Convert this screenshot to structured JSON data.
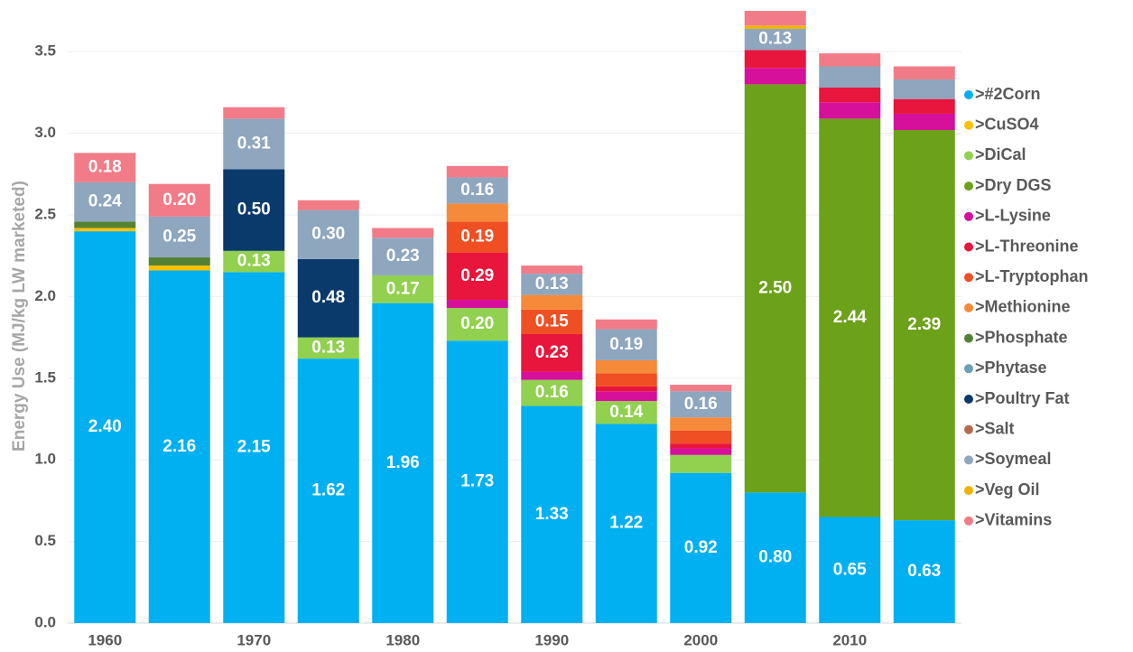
{
  "chart_data": {
    "type": "stacked_bar",
    "y_label": "Energy Use (MJ/kg LW marketed)",
    "categories": [
      "1960",
      null,
      "1970",
      null,
      "1980",
      null,
      "1990",
      null,
      "2000",
      null,
      "2010",
      null
    ],
    "ylim": [
      0,
      3.8
    ],
    "yticks": [
      {
        "value": 0,
        "label": "0.0"
      },
      0.5,
      {
        "value": 1,
        "label": "1.0"
      },
      1.5,
      {
        "value": 2,
        "label": "2.0"
      },
      2.5,
      {
        "value": 3,
        "label": "3.0"
      },
      3.5
    ],
    "grid": true,
    "legend": "right",
    "series": [
      {
        "name": ">#2Corn",
        "color": "#00b0f0",
        "values": [
          2.4,
          2.16,
          2.15,
          1.62,
          1.96,
          1.73,
          1.33,
          1.22,
          0.92,
          0.8,
          0.65,
          0.63
        ],
        "value_labels": [
          "2.40",
          "2.16",
          "2.15",
          "1.62",
          "1.96",
          "1.73",
          "1.33",
          "1.22",
          "0.92",
          "0.80",
          "0.65",
          "0.63"
        ]
      },
      {
        "name": ">CuSO4",
        "color": "#ffc000",
        "values": [
          0.02,
          0.03,
          null,
          null,
          null,
          null,
          null,
          null,
          null,
          null,
          null,
          null
        ]
      },
      {
        "name": ">DiCal",
        "color": "#92d050",
        "values": [
          null,
          null,
          0.13,
          0.13,
          0.17,
          0.2,
          0.16,
          0.14,
          0.11,
          null,
          null,
          null
        ],
        "value_labels": [
          null,
          null,
          "0.13",
          "0.13",
          "0.17",
          "0.20",
          "0.16",
          "0.14",
          null,
          null,
          null,
          null
        ]
      },
      {
        "name": ">Dry DGS",
        "color": "#6ca11a",
        "values": [
          null,
          null,
          null,
          null,
          null,
          null,
          null,
          null,
          null,
          2.5,
          2.44,
          2.39
        ],
        "value_labels": [
          null,
          null,
          null,
          null,
          null,
          null,
          null,
          null,
          null,
          "2.50",
          "2.44",
          "2.39"
        ]
      },
      {
        "name": ">L-Lysine",
        "color": "#d6109b",
        "values": [
          null,
          null,
          null,
          null,
          null,
          0.05,
          0.05,
          0.06,
          0.04,
          0.1,
          0.1,
          0.1
        ]
      },
      {
        "name": ">L-Threonine",
        "color": "#e8163c",
        "values": [
          null,
          null,
          null,
          null,
          null,
          0.29,
          0.23,
          0.03,
          0.03,
          0.11,
          0.09,
          0.09
        ],
        "value_labels": [
          null,
          null,
          null,
          null,
          null,
          "0.29",
          "0.23",
          null,
          null,
          null,
          null,
          null
        ]
      },
      {
        "name": ">L-Tryptophan",
        "color": "#f04f23",
        "values": [
          null,
          null,
          null,
          null,
          null,
          0.19,
          0.15,
          0.08,
          0.08,
          null,
          null,
          null
        ],
        "value_labels": [
          null,
          null,
          null,
          null,
          null,
          "0.19",
          "0.15",
          null,
          null,
          null,
          null,
          null
        ]
      },
      {
        "name": ">Methionine",
        "color": "#f58a3a",
        "values": [
          null,
          null,
          null,
          null,
          null,
          0.11,
          0.09,
          0.08,
          0.08,
          null,
          null,
          null
        ]
      },
      {
        "name": ">Phosphate",
        "color": "#548235",
        "values": [
          0.04,
          0.05,
          null,
          null,
          null,
          null,
          null,
          null,
          null,
          null,
          null,
          null
        ]
      },
      {
        "name": ">Phytase",
        "color": "#6aa0b8",
        "values": [
          null,
          null,
          null,
          null,
          null,
          null,
          null,
          null,
          null,
          null,
          null,
          null
        ]
      },
      {
        "name": ">Poultry Fat",
        "color": "#0a3a6b",
        "values": [
          null,
          null,
          0.5,
          0.48,
          null,
          null,
          null,
          null,
          null,
          null,
          null,
          null
        ],
        "value_labels": [
          null,
          null,
          "0.50",
          "0.48",
          null,
          null,
          null,
          null,
          null,
          null,
          null,
          null
        ]
      },
      {
        "name": ">Salt",
        "color": "#b56b4a",
        "values": [
          null,
          null,
          null,
          null,
          null,
          null,
          null,
          null,
          null,
          null,
          null,
          null
        ]
      },
      {
        "name": ">Soymeal",
        "color": "#8fa6bf",
        "values": [
          0.24,
          0.25,
          0.31,
          0.3,
          0.23,
          0.16,
          0.13,
          0.19,
          0.16,
          0.13,
          0.13,
          0.12
        ],
        "value_labels": [
          "0.24",
          "0.25",
          "0.31",
          "0.30",
          "0.23",
          "0.16",
          "0.13",
          "0.19",
          "0.16",
          "0.13",
          null,
          null
        ]
      },
      {
        "name": ">Veg Oil",
        "color": "#f0b400",
        "values": [
          null,
          null,
          null,
          null,
          null,
          null,
          null,
          null,
          null,
          0.02,
          null,
          null
        ]
      },
      {
        "name": ">Vitamins",
        "color": "#f17c87",
        "values": [
          0.18,
          0.2,
          0.07,
          0.06,
          0.06,
          0.07,
          0.05,
          0.06,
          0.04,
          0.09,
          0.08,
          0.08
        ],
        "value_labels": [
          "0.18",
          "0.20",
          null,
          null,
          null,
          null,
          null,
          null,
          null,
          null,
          null,
          null
        ]
      }
    ]
  }
}
